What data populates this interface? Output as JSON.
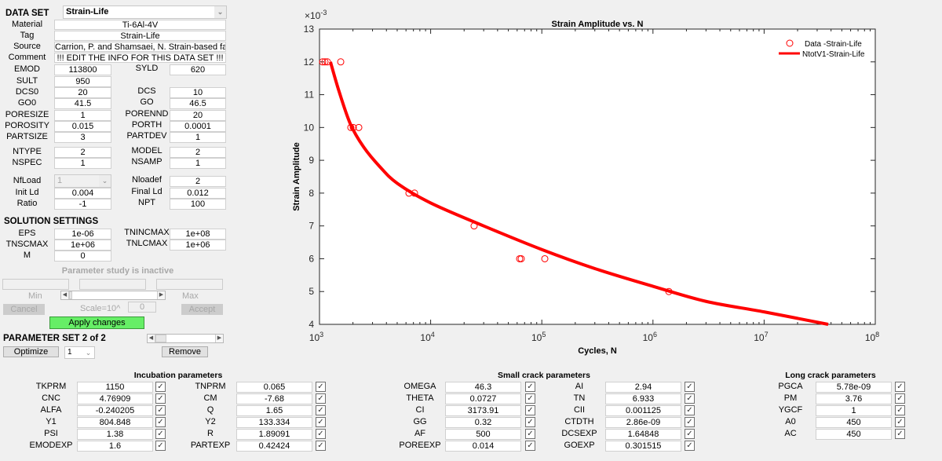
{
  "dataset": {
    "label": "DATA SET",
    "selected": "Strain-Life",
    "text_fields": [
      {
        "label": "Material",
        "value": "Ti-6Al-4V"
      },
      {
        "label": "Tag",
        "value": "Strain-Life"
      },
      {
        "label": "Source",
        "value": "Carrion, P. and Shamsaei, N. Strain-based fatigue"
      },
      {
        "label": "Comment",
        "value": "!!! EDIT THE INFO FOR THIS DATA SET !!!"
      }
    ],
    "params_left": [
      {
        "label": "EMOD",
        "value": "113800"
      },
      {
        "label": "SULT",
        "value": "950"
      },
      {
        "label": "DCS0",
        "value": "20"
      },
      {
        "label": "GO0",
        "value": "41.5"
      },
      {
        "label": "PORESIZE",
        "value": "1"
      },
      {
        "label": "POROSITY",
        "value": "0.015"
      },
      {
        "label": "PARTSIZE",
        "value": "3"
      },
      {
        "label": "NTYPE",
        "value": "2"
      },
      {
        "label": "NSPEC",
        "value": "1"
      },
      {
        "label": "NfLoad",
        "value": "1"
      },
      {
        "label": "Init Ld",
        "value": "0.004"
      },
      {
        "label": "Ratio",
        "value": "-1"
      }
    ],
    "params_right": [
      {
        "label": "SYLD",
        "value": "620"
      },
      null,
      {
        "label": "DCS",
        "value": "10"
      },
      {
        "label": "GO",
        "value": "46.5"
      },
      {
        "label": "PORENND",
        "value": "20"
      },
      {
        "label": "PORTH",
        "value": "0.0001"
      },
      {
        "label": "PARTDEV",
        "value": "1"
      },
      {
        "label": "MODEL",
        "value": "2"
      },
      {
        "label": "NSAMP",
        "value": "1"
      },
      {
        "label": "Nloadef",
        "value": "2"
      },
      {
        "label": "Final Ld",
        "value": "0.012"
      },
      {
        "label": "NPT",
        "value": "100"
      }
    ]
  },
  "solution": {
    "title": "SOLUTION SETTINGS",
    "left": [
      {
        "label": "EPS",
        "value": "1e-06"
      },
      {
        "label": "TNSCMAX",
        "value": "1e+06"
      },
      {
        "label": "M",
        "value": "0"
      }
    ],
    "right": [
      {
        "label": "TNINCMAX",
        "value": "1e+08"
      },
      {
        "label": "TNLCMAX",
        "value": "1e+06"
      }
    ]
  },
  "param_study": {
    "status": "Parameter study is inactive",
    "min_label": "Min",
    "max_label": "Max",
    "cancel": "Cancel",
    "scale_label": "Scale=10^",
    "scale_value": "0",
    "accept": "Accept",
    "apply": "Apply changes",
    "apply_color": "#66ee66"
  },
  "parameter_set": {
    "title": "PARAMETER SET 2 of 2",
    "optimize": "Optimize",
    "select_value": "1",
    "remove": "Remove",
    "slider_position": 0.05
  },
  "groups": [
    {
      "title": "Incubation parameters",
      "left": [
        {
          "label": "TKPRM",
          "value": "1150",
          "checked": true
        },
        {
          "label": "CNC",
          "value": "4.76909",
          "checked": true
        },
        {
          "label": "ALFA",
          "value": "-0.240205",
          "checked": true
        },
        {
          "label": "Y1",
          "value": "804.848",
          "checked": true
        },
        {
          "label": "PSI",
          "value": "1.38",
          "checked": true
        },
        {
          "label": "EMODEXP",
          "value": "1.6",
          "checked": true
        }
      ],
      "right": [
        {
          "label": "TNPRM",
          "value": "0.065",
          "checked": true
        },
        {
          "label": "CM",
          "value": "-7.68",
          "checked": true
        },
        {
          "label": "Q",
          "value": "1.65",
          "checked": true
        },
        {
          "label": "Y2",
          "value": "133.334",
          "checked": true
        },
        {
          "label": "R",
          "value": "1.89091",
          "checked": true
        },
        {
          "label": "PARTEXP",
          "value": "0.42424",
          "checked": true
        }
      ]
    },
    {
      "title": "Small crack parameters",
      "left": [
        {
          "label": "OMEGA",
          "value": "46.3",
          "checked": true
        },
        {
          "label": "THETA",
          "value": "0.0727",
          "checked": true
        },
        {
          "label": "CI",
          "value": "3173.91",
          "checked": true
        },
        {
          "label": "GG",
          "value": "0.32",
          "checked": true
        },
        {
          "label": "AF",
          "value": "500",
          "checked": true
        },
        {
          "label": "POREEXP",
          "value": "0.014",
          "checked": true
        }
      ],
      "right": [
        {
          "label": "AI",
          "value": "2.94",
          "checked": true
        },
        {
          "label": "TN",
          "value": "6.933",
          "checked": true
        },
        {
          "label": "CII",
          "value": "0.001125",
          "checked": true
        },
        {
          "label": "CTDTH",
          "value": "2.86e-09",
          "checked": true
        },
        {
          "label": "DCSEXP",
          "value": "1.64848",
          "checked": true
        },
        {
          "label": "GOEXP",
          "value": "0.301515",
          "checked": true
        }
      ]
    },
    {
      "title": "Long crack parameters",
      "left": [
        {
          "label": "PGCA",
          "value": "5.78e-09",
          "checked": true
        },
        {
          "label": "PM",
          "value": "3.76",
          "checked": true
        },
        {
          "label": "YGCF",
          "value": "1",
          "checked": true
        },
        {
          "label": "A0",
          "value": "450",
          "checked": true
        },
        {
          "label": "AC",
          "value": "450",
          "checked": true
        }
      ],
      "right": []
    }
  ],
  "chart_data": {
    "type": "scatter+line",
    "title": "Strain Amplitude vs. N",
    "xlabel": "Cycles, N",
    "ylabel": "Strain Amplitude",
    "y_exponent_label": "×10",
    "y_exponent": "-3",
    "xscale": "log",
    "xlim": [
      1000,
      100000000
    ],
    "ylim": [
      0.004,
      0.013
    ],
    "x_ticks": [
      {
        "base": "10",
        "exp": "3"
      },
      {
        "base": "10",
        "exp": "4"
      },
      {
        "base": "10",
        "exp": "5"
      },
      {
        "base": "10",
        "exp": "6"
      },
      {
        "base": "10",
        "exp": "7"
      },
      {
        "base": "10",
        "exp": "8"
      }
    ],
    "y_ticks": [
      "4",
      "5",
      "6",
      "7",
      "8",
      "9",
      "10",
      "11",
      "12",
      "13"
    ],
    "grid": false,
    "legend_position": "top-right",
    "series": [
      {
        "name": "Data -Strain-Life",
        "kind": "scatter",
        "color": "#ff0000",
        "x": [
          1067,
          1120,
          1177,
          1552,
          1914,
          2013,
          2256,
          6380,
          7160,
          24600,
          63200,
          65300,
          106400,
          1390000
        ],
        "y": [
          0.012,
          0.012,
          0.012,
          0.012,
          0.01,
          0.01,
          0.01,
          0.008,
          0.008,
          0.007,
          0.006,
          0.006,
          0.006,
          0.005
        ]
      },
      {
        "name": "NtotV1-Strain-Life",
        "kind": "line",
        "color": "#ff0000",
        "x": [
          1255,
          1500,
          1900,
          2500,
          3500,
          5000,
          10000,
          30000,
          100000,
          300000,
          1000000,
          3000000,
          10000000,
          37700000
        ],
        "y": [
          0.012,
          0.0111,
          0.0101,
          0.0094,
          0.0088,
          0.0083,
          0.0077,
          0.007,
          0.00628,
          0.0057,
          0.00516,
          0.0047,
          0.00438,
          0.004
        ]
      }
    ]
  }
}
